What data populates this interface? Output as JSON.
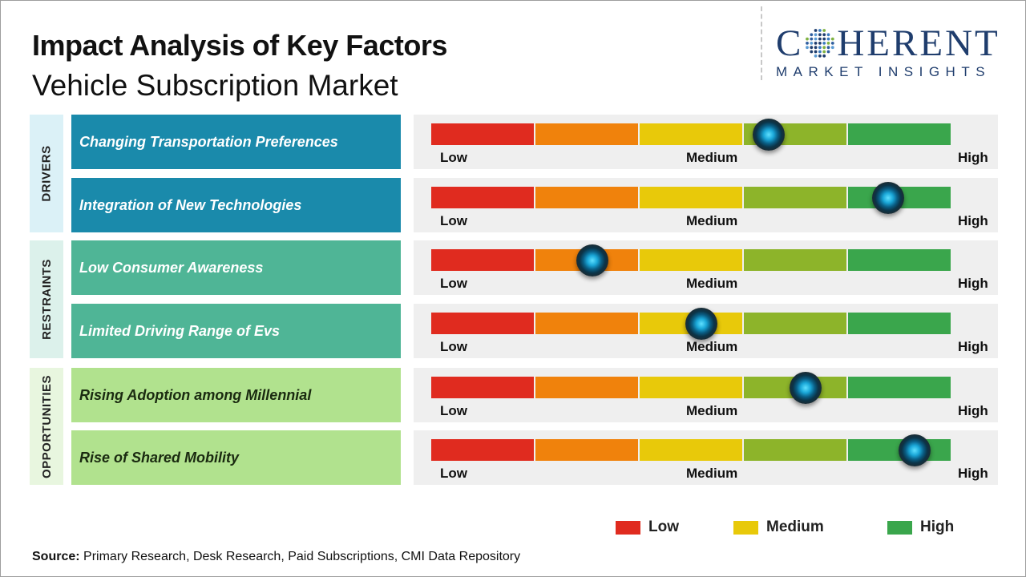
{
  "title": "Impact Analysis of Key Factors",
  "subtitle": "Vehicle Subscription Market",
  "logo": {
    "main_prefix": "C",
    "main_suffix": "HERENT",
    "sub": "MARKET INSIGHTS"
  },
  "colors": {
    "low": "#e02b1f",
    "low_mid": "#f0820c",
    "medium": "#e8c90a",
    "mid_high": "#8db42a",
    "high": "#3aa64c",
    "drivers_bg": "#1a8aab",
    "restraints_bg": "#4fb596",
    "opportunities_bg": "#b1e28e",
    "drivers_cat_bg": "#dbf1f7",
    "restraints_cat_bg": "#dcf1eb",
    "opportunities_cat_bg": "#e8f6df"
  },
  "gauge_labels": {
    "low": "Low",
    "medium": "Medium",
    "high": "High"
  },
  "chart_data": {
    "type": "gauge",
    "scale": [
      "Low",
      "Medium",
      "High"
    ],
    "range": [
      0,
      1
    ],
    "categories": [
      {
        "name": "DRIVERS",
        "factors": [
          {
            "label": "Changing Transportation Preferences",
            "value": 0.65
          },
          {
            "label": "Integration of New Technologies",
            "value": 0.88
          }
        ]
      },
      {
        "name": "RESTRAINTS",
        "factors": [
          {
            "label": "Low Consumer Awareness",
            "value": 0.31
          },
          {
            "label": "Limited Driving Range of Evs",
            "value": 0.52
          }
        ]
      },
      {
        "name": "OPPORTUNITIES",
        "factors": [
          {
            "label": "Rising Adoption among Millennial",
            "value": 0.72
          },
          {
            "label": "Rise of Shared Mobility",
            "value": 0.93
          }
        ]
      }
    ]
  },
  "legend": [
    {
      "label": "Low",
      "color": "#e02b1f"
    },
    {
      "label": "Medium",
      "color": "#e8c90a"
    },
    {
      "label": "High",
      "color": "#3aa64c"
    }
  ],
  "source": {
    "label": "Source:",
    "text": "Primary Research, Desk Research, Paid Subscriptions, CMI Data Repository"
  }
}
